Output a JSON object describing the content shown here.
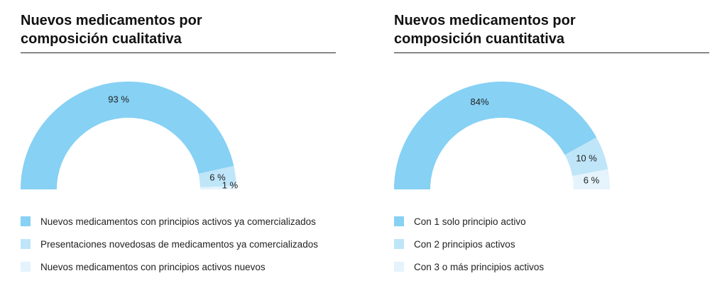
{
  "chart_data": [
    {
      "type": "pie",
      "subtype": "half-donut",
      "title": [
        "Nuevos medicamentos por",
        "composición cualitativa"
      ],
      "slices": [
        {
          "label": "Nuevos medicamentos con principios activos ya comercializados",
          "value": 93,
          "value_label": "93 %",
          "color": "#86d1f4"
        },
        {
          "label": "Presentaciones novedosas de medicamentos ya comercializados",
          "value": 6,
          "value_label": "6 %",
          "color": "#bfe5f9"
        },
        {
          "label": "Nuevos medicamentos con principios activos nuevos",
          "value": 1,
          "value_label": "1 %",
          "color": "#e4f3fc"
        }
      ],
      "legend_position": "bottom"
    },
    {
      "type": "pie",
      "subtype": "half-donut",
      "title": [
        "Nuevos medicamentos por",
        "composición cuantitativa"
      ],
      "slices": [
        {
          "label": "Con 1 solo principio activo",
          "value": 84,
          "value_label": "84%",
          "color": "#86d1f4"
        },
        {
          "label": "Con 2 principios activos",
          "value": 10,
          "value_label": "10 %",
          "color": "#bfe5f9"
        },
        {
          "label": "Con 3 o más principios activos",
          "value": 6,
          "value_label": "6 %",
          "color": "#e4f3fc"
        }
      ],
      "legend_position": "bottom"
    }
  ]
}
